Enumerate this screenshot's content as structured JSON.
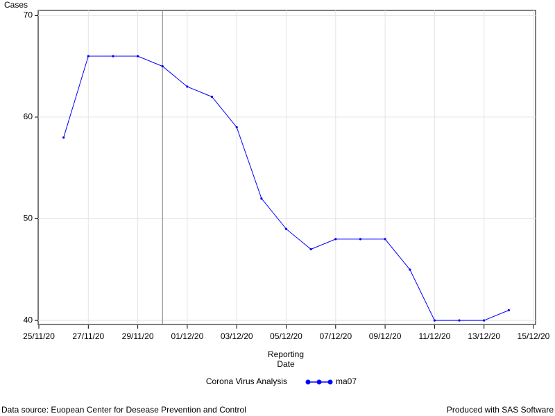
{
  "chart_data": {
    "type": "line",
    "ylabel": "Cases",
    "xlabel": "Reporting Date",
    "legend_title": "Corona Virus Analysis",
    "x": [
      "2020-11-26",
      "2020-11-27",
      "2020-11-28",
      "2020-11-29",
      "2020-11-30",
      "2020-12-01",
      "2020-12-02",
      "2020-12-03",
      "2020-12-04",
      "2020-12-05",
      "2020-12-06",
      "2020-12-07",
      "2020-12-08",
      "2020-12-09",
      "2020-12-10",
      "2020-12-11",
      "2020-12-12",
      "2020-12-13",
      "2020-12-14"
    ],
    "series": [
      {
        "name": "ma07",
        "color": "#0000ff",
        "values": [
          58,
          66,
          66,
          66,
          65,
          63,
          62,
          59,
          52,
          49,
          47,
          48,
          48,
          48,
          45,
          40,
          40,
          40,
          41
        ]
      }
    ],
    "xlim": [
      "2020-11-25",
      "2020-12-15"
    ],
    "xticks": [
      {
        "value": "2020-11-25",
        "label": "25/11/20"
      },
      {
        "value": "2020-11-27",
        "label": "27/11/20"
      },
      {
        "value": "2020-11-29",
        "label": "29/11/20"
      },
      {
        "value": "2020-12-01",
        "label": "01/12/20"
      },
      {
        "value": "2020-12-03",
        "label": "03/12/20"
      },
      {
        "value": "2020-12-05",
        "label": "05/12/20"
      },
      {
        "value": "2020-12-07",
        "label": "07/12/20"
      },
      {
        "value": "2020-12-09",
        "label": "09/12/20"
      },
      {
        "value": "2020-12-11",
        "label": "11/12/20"
      },
      {
        "value": "2020-12-13",
        "label": "13/12/20"
      },
      {
        "value": "2020-12-15",
        "label": "15/12/20"
      }
    ],
    "ylim": [
      39.6,
      70.5
    ],
    "yticks": [
      40,
      50,
      60,
      70
    ],
    "reference_line_x": "2020-11-30",
    "grid": true,
    "footnote_left": "Data source: Euopean Center for Desease Prevention and Control",
    "footnote_right": "Produced with SAS Software"
  }
}
